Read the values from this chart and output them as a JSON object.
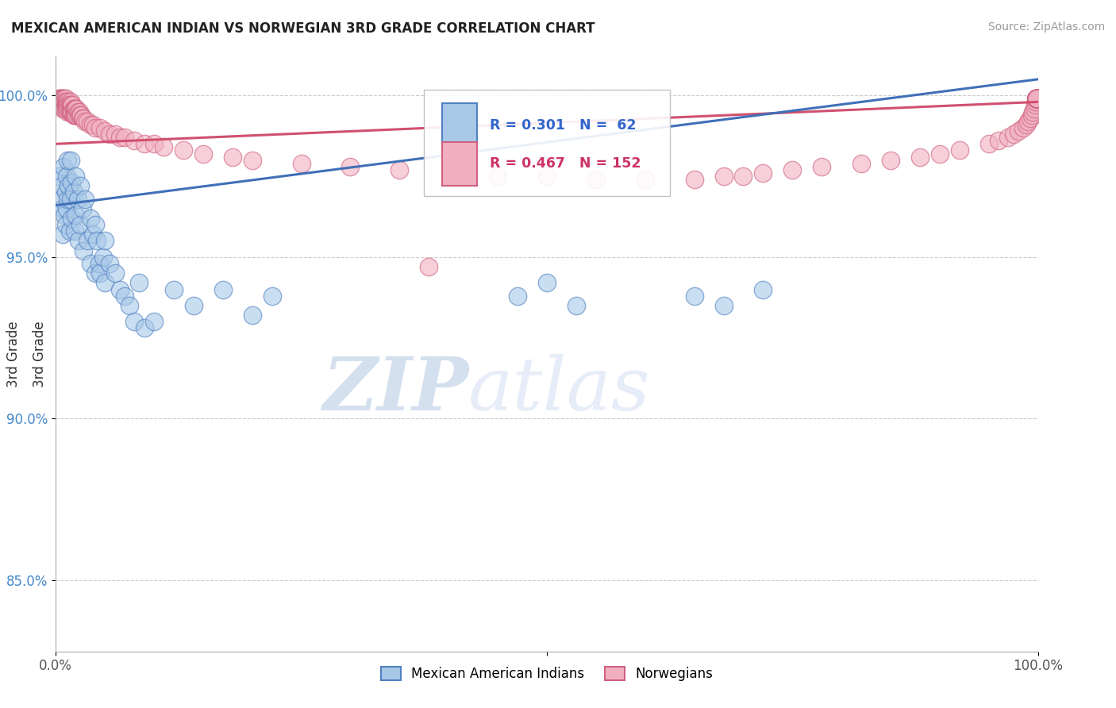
{
  "title": "MEXICAN AMERICAN INDIAN VS NORWEGIAN 3RD GRADE CORRELATION CHART",
  "source": "Source: ZipAtlas.com",
  "ylabel": "3rd Grade",
  "legend_r_blue": "R = 0.301",
  "legend_n_blue": "N =  62",
  "legend_r_pink": "R = 0.467",
  "legend_n_pink": "N = 152",
  "legend_label_blue": "Mexican American Indians",
  "legend_label_pink": "Norwegians",
  "blue_fill": "#a8c8e8",
  "blue_edge": "#5080c0",
  "pink_fill": "#f0b0c0",
  "pink_edge": "#d06080",
  "blue_line": "#4070b8",
  "pink_line": "#d05070",
  "watermark_zip": "ZIP",
  "watermark_atlas": "atlas",
  "watermark_color": "#d0dff0",
  "xlim": [
    0.0,
    1.0
  ],
  "ylim": [
    0.828,
    1.012
  ],
  "yticks": [
    0.85,
    0.9,
    0.95,
    1.0
  ],
  "ytick_labels": [
    "85.0%",
    "90.0%",
    "95.0%",
    "100.0%"
  ],
  "blue_regression_x0": 0.0,
  "blue_regression_y0": 0.966,
  "blue_regression_x1": 1.0,
  "blue_regression_y1": 1.005,
  "pink_regression_x0": 0.0,
  "pink_regression_y0": 0.985,
  "pink_regression_x1": 1.0,
  "pink_regression_y1": 0.998,
  "blue_pts_x": [
    0.003,
    0.005,
    0.006,
    0.007,
    0.007,
    0.008,
    0.009,
    0.01,
    0.01,
    0.011,
    0.011,
    0.012,
    0.012,
    0.013,
    0.014,
    0.015,
    0.015,
    0.016,
    0.016,
    0.018,
    0.019,
    0.02,
    0.02,
    0.022,
    0.023,
    0.025,
    0.025,
    0.027,
    0.028,
    0.03,
    0.032,
    0.035,
    0.035,
    0.038,
    0.04,
    0.04,
    0.042,
    0.044,
    0.045,
    0.048,
    0.05,
    0.05,
    0.055,
    0.06,
    0.065,
    0.07,
    0.075,
    0.08,
    0.085,
    0.09,
    0.1,
    0.12,
    0.14,
    0.17,
    0.2,
    0.22,
    0.47,
    0.5,
    0.53,
    0.65,
    0.68,
    0.72
  ],
  "blue_pts_y": [
    0.975,
    0.968,
    0.972,
    0.965,
    0.957,
    0.978,
    0.963,
    0.97,
    0.96,
    0.975,
    0.965,
    0.98,
    0.968,
    0.972,
    0.958,
    0.98,
    0.968,
    0.962,
    0.973,
    0.97,
    0.958,
    0.975,
    0.963,
    0.968,
    0.955,
    0.972,
    0.96,
    0.965,
    0.952,
    0.968,
    0.955,
    0.962,
    0.948,
    0.957,
    0.96,
    0.945,
    0.955,
    0.948,
    0.945,
    0.95,
    0.955,
    0.942,
    0.948,
    0.945,
    0.94,
    0.938,
    0.935,
    0.93,
    0.942,
    0.928,
    0.93,
    0.94,
    0.935,
    0.94,
    0.932,
    0.938,
    0.938,
    0.942,
    0.935,
    0.938,
    0.935,
    0.94
  ],
  "pink_pts_x": [
    0.002,
    0.003,
    0.003,
    0.004,
    0.004,
    0.005,
    0.005,
    0.005,
    0.006,
    0.006,
    0.006,
    0.007,
    0.007,
    0.007,
    0.008,
    0.008,
    0.008,
    0.009,
    0.009,
    0.009,
    0.01,
    0.01,
    0.01,
    0.01,
    0.011,
    0.011,
    0.011,
    0.012,
    0.012,
    0.012,
    0.013,
    0.013,
    0.014,
    0.014,
    0.015,
    0.015,
    0.015,
    0.016,
    0.016,
    0.017,
    0.017,
    0.018,
    0.018,
    0.019,
    0.019,
    0.02,
    0.02,
    0.021,
    0.021,
    0.022,
    0.023,
    0.024,
    0.025,
    0.026,
    0.027,
    0.028,
    0.03,
    0.032,
    0.035,
    0.038,
    0.04,
    0.045,
    0.05,
    0.055,
    0.06,
    0.065,
    0.07,
    0.08,
    0.09,
    0.1,
    0.11,
    0.13,
    0.15,
    0.18,
    0.2,
    0.25,
    0.3,
    0.35,
    0.38,
    0.42,
    0.45,
    0.5,
    0.55,
    0.6,
    0.65,
    0.68,
    0.7,
    0.72,
    0.75,
    0.78,
    0.82,
    0.85,
    0.88,
    0.9,
    0.92,
    0.95,
    0.96,
    0.97,
    0.975,
    0.98,
    0.985,
    0.988,
    0.99,
    0.992,
    0.994,
    0.995,
    0.996,
    0.997,
    0.998,
    0.998,
    0.999,
    0.999,
    0.999,
    0.999,
    0.999,
    0.999,
    0.999,
    0.999,
    0.999,
    0.999,
    0.999,
    0.999,
    0.999,
    0.999,
    0.999,
    0.999,
    0.999,
    0.999,
    0.999,
    0.999,
    0.999,
    0.999,
    0.999,
    0.999,
    0.999,
    0.999,
    0.999,
    0.999,
    0.999,
    0.999,
    0.999,
    0.999,
    0.999,
    0.999,
    0.999,
    0.999,
    0.999,
    0.999,
    0.999,
    0.999,
    0.999,
    0.999,
    0.999
  ],
  "pink_pts_y": [
    0.998,
    0.999,
    0.997,
    0.999,
    0.998,
    0.999,
    0.998,
    0.997,
    0.999,
    0.998,
    0.997,
    0.999,
    0.998,
    0.996,
    0.999,
    0.998,
    0.997,
    0.999,
    0.998,
    0.996,
    0.999,
    0.998,
    0.997,
    0.996,
    0.998,
    0.997,
    0.996,
    0.998,
    0.997,
    0.995,
    0.997,
    0.996,
    0.997,
    0.995,
    0.998,
    0.997,
    0.995,
    0.997,
    0.995,
    0.997,
    0.995,
    0.996,
    0.994,
    0.996,
    0.994,
    0.996,
    0.994,
    0.996,
    0.994,
    0.995,
    0.994,
    0.995,
    0.994,
    0.994,
    0.993,
    0.993,
    0.992,
    0.992,
    0.991,
    0.991,
    0.99,
    0.99,
    0.989,
    0.988,
    0.988,
    0.987,
    0.987,
    0.986,
    0.985,
    0.985,
    0.984,
    0.983,
    0.982,
    0.981,
    0.98,
    0.979,
    0.978,
    0.977,
    0.947,
    0.976,
    0.975,
    0.975,
    0.974,
    0.974,
    0.974,
    0.975,
    0.975,
    0.976,
    0.977,
    0.978,
    0.979,
    0.98,
    0.981,
    0.982,
    0.983,
    0.985,
    0.986,
    0.987,
    0.988,
    0.989,
    0.99,
    0.991,
    0.992,
    0.993,
    0.994,
    0.995,
    0.996,
    0.997,
    0.998,
    0.999,
    0.999,
    0.999,
    0.999,
    0.999,
    0.999,
    0.999,
    0.999,
    0.999,
    0.999,
    0.999,
    0.999,
    0.999,
    0.999,
    0.999,
    0.999,
    0.999,
    0.999,
    0.999,
    0.999,
    0.999,
    0.999,
    0.999,
    0.999,
    0.999,
    0.999,
    0.999,
    0.999,
    0.999,
    0.999,
    0.999,
    0.999,
    0.999,
    0.999,
    0.999,
    0.999,
    0.999,
    0.999,
    0.999,
    0.999,
    0.999,
    0.999,
    0.999,
    0.999
  ]
}
